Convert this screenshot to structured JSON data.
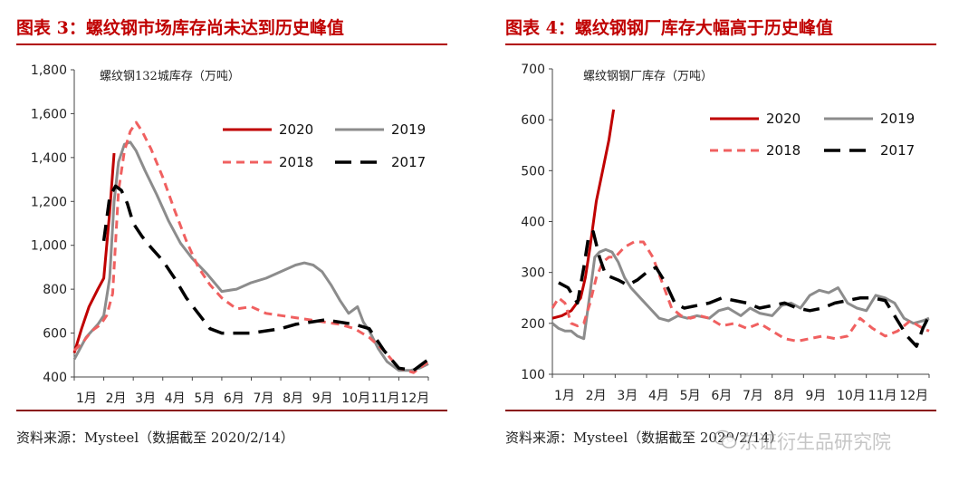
{
  "figures": [
    {
      "title": "图表 3：螺纹钢市场库存尚未达到历史峰值",
      "source": "资料来源：Mysteel（数据截至 2020/2/14）",
      "unit_label": "螺纹钢132城库存（万吨）"
    },
    {
      "title": "图表 4：螺纹钢钢厂库存大幅高于历史峰值",
      "source": "资料来源：Mysteel（数据截至 2020/2/14）",
      "unit_label": "螺纹钢钢厂库存（万吨）"
    }
  ],
  "watermark": "东证衍生品研究院",
  "chart_data": [
    {
      "type": "line",
      "title": "",
      "ylabel": "螺纹钢132城库存（万吨）",
      "ylim": [
        400,
        1800
      ],
      "yticks": [
        400,
        600,
        800,
        1000,
        1200,
        1400,
        1600,
        1800
      ],
      "ytick_labels": [
        "400",
        "600",
        "800",
        "1,000",
        "1,200",
        "1,400",
        "1,600",
        "1,800"
      ],
      "xlim": [
        0,
        12
      ],
      "x_categories": [
        "1月",
        "2月",
        "3月",
        "4月",
        "5月",
        "6月",
        "7月",
        "8月",
        "9月",
        "10月",
        "11月",
        "12月"
      ],
      "grid": false,
      "legend_position": "top-right",
      "series": [
        {
          "name": "2020",
          "color": "#c00000",
          "dash": "solid",
          "width": 3,
          "x": [
            0,
            0.25,
            0.5,
            0.8,
            1.0,
            1.2,
            1.35
          ],
          "y": [
            510,
            620,
            720,
            800,
            850,
            1150,
            1420
          ]
        },
        {
          "name": "2019",
          "color": "#8c8c8c",
          "dash": "solid",
          "width": 3,
          "x": [
            0,
            0.2,
            0.4,
            0.6,
            0.8,
            1.0,
            1.2,
            1.35,
            1.5,
            1.7,
            1.9,
            2.1,
            2.4,
            2.8,
            3.2,
            3.6,
            4.0,
            4.5,
            5.0,
            5.5,
            6.0,
            6.5,
            7.0,
            7.5,
            7.8,
            8.1,
            8.4,
            8.7,
            9.0,
            9.3,
            9.6,
            9.8,
            10.0,
            10.3,
            10.6,
            11.0,
            11.4,
            11.7,
            12.0
          ],
          "y": [
            480,
            530,
            580,
            610,
            640,
            680,
            850,
            1200,
            1380,
            1460,
            1470,
            1430,
            1340,
            1230,
            1110,
            1010,
            940,
            870,
            790,
            800,
            830,
            850,
            880,
            910,
            920,
            910,
            880,
            820,
            750,
            690,
            720,
            650,
            610,
            530,
            470,
            430,
            430,
            440,
            460
          ]
        },
        {
          "name": "2018",
          "color": "#f06060",
          "dash": "dash",
          "width": 3,
          "x": [
            0,
            0.3,
            0.6,
            0.9,
            1.1,
            1.3,
            1.5,
            1.7,
            1.9,
            2.1,
            2.3,
            2.6,
            3.0,
            3.4,
            3.8,
            4.2,
            4.6,
            5.0,
            5.5,
            6.0,
            6.5,
            7.0,
            7.5,
            8.0,
            8.5,
            9.0,
            9.5,
            10.0,
            10.5,
            11.0,
            11.5,
            12.0
          ],
          "y": [
            520,
            560,
            610,
            640,
            680,
            780,
            1250,
            1430,
            1520,
            1560,
            1520,
            1440,
            1310,
            1160,
            1020,
            900,
            820,
            760,
            710,
            720,
            690,
            680,
            670,
            660,
            650,
            640,
            620,
            580,
            520,
            440,
            420,
            470
          ]
        },
        {
          "name": "2017",
          "color": "#000000",
          "dash": "longdash",
          "width": 3.5,
          "x": [
            1.0,
            1.2,
            1.4,
            1.6,
            1.8,
            2.0,
            2.3,
            2.6,
            3.0,
            3.4,
            3.8,
            4.2,
            4.6,
            5.0,
            5.5,
            6.0,
            6.5,
            7.0,
            7.5,
            8.0,
            8.5,
            9.0,
            9.5,
            10.0,
            10.5,
            11.0,
            11.5,
            12.0
          ],
          "y": [
            1020,
            1220,
            1270,
            1250,
            1190,
            1100,
            1040,
            990,
            930,
            850,
            760,
            690,
            620,
            600,
            600,
            600,
            610,
            620,
            640,
            650,
            660,
            650,
            640,
            620,
            520,
            440,
            430,
            480
          ]
        }
      ]
    },
    {
      "type": "line",
      "title": "",
      "ylabel": "螺纹钢钢厂库存（万吨）",
      "ylim": [
        100,
        700
      ],
      "yticks": [
        100,
        200,
        300,
        400,
        500,
        600,
        700
      ],
      "ytick_labels": [
        "100",
        "200",
        "300",
        "400",
        "500",
        "600",
        "700"
      ],
      "xlim": [
        0,
        12
      ],
      "x_categories": [
        "1月",
        "2月",
        "3月",
        "4月",
        "5月",
        "6月",
        "7月",
        "8月",
        "9月",
        "10月",
        "11月",
        "12月"
      ],
      "grid": false,
      "legend_position": "top-right",
      "series": [
        {
          "name": "2020",
          "color": "#c00000",
          "dash": "solid",
          "width": 3,
          "x": [
            0,
            0.3,
            0.6,
            0.9,
            1.05,
            1.2,
            1.4,
            1.6,
            1.8,
            1.95
          ],
          "y": [
            210,
            215,
            225,
            250,
            290,
            350,
            440,
            500,
            560,
            620
          ]
        },
        {
          "name": "2019",
          "color": "#8c8c8c",
          "dash": "solid",
          "width": 3,
          "x": [
            0,
            0.2,
            0.4,
            0.6,
            0.8,
            1.0,
            1.2,
            1.35,
            1.5,
            1.7,
            1.9,
            2.1,
            2.3,
            2.5,
            2.8,
            3.1,
            3.4,
            3.7,
            4.0,
            4.3,
            4.6,
            5.0,
            5.3,
            5.6,
            6.0,
            6.3,
            6.6,
            7.0,
            7.3,
            7.6,
            7.9,
            8.2,
            8.5,
            8.8,
            9.1,
            9.4,
            9.7,
            10.0,
            10.3,
            10.6,
            10.9,
            11.2,
            11.5,
            11.8,
            12.0
          ],
          "y": [
            200,
            190,
            185,
            185,
            175,
            170,
            260,
            330,
            340,
            345,
            340,
            320,
            290,
            270,
            250,
            230,
            210,
            205,
            215,
            210,
            215,
            210,
            225,
            230,
            215,
            230,
            220,
            215,
            235,
            240,
            230,
            255,
            265,
            260,
            270,
            240,
            230,
            225,
            255,
            250,
            240,
            210,
            200,
            205,
            210
          ]
        },
        {
          "name": "2018",
          "color": "#f06060",
          "dash": "dash",
          "width": 3,
          "x": [
            0,
            0.2,
            0.4,
            0.6,
            0.8,
            1.0,
            1.2,
            1.4,
            1.6,
            1.8,
            2.0,
            2.3,
            2.6,
            2.9,
            3.2,
            3.5,
            3.8,
            4.1,
            4.4,
            4.7,
            5.0,
            5.4,
            5.8,
            6.2,
            6.6,
            7.0,
            7.4,
            7.8,
            8.2,
            8.6,
            9.0,
            9.4,
            9.8,
            10.2,
            10.6,
            11.0,
            11.4,
            11.8,
            12.0
          ],
          "y": [
            230,
            250,
            240,
            200,
            195,
            200,
            240,
            290,
            320,
            330,
            330,
            350,
            360,
            360,
            330,
            280,
            230,
            215,
            210,
            215,
            210,
            195,
            200,
            190,
            200,
            185,
            170,
            165,
            170,
            175,
            170,
            175,
            210,
            190,
            175,
            185,
            205,
            190,
            185
          ]
        },
        {
          "name": "2017",
          "color": "#000000",
          "dash": "longdash",
          "width": 3.5,
          "x": [
            0.2,
            0.5,
            0.8,
            1.0,
            1.15,
            1.3,
            1.5,
            1.7,
            1.9,
            2.1,
            2.4,
            2.7,
            3.0,
            3.3,
            3.6,
            3.9,
            4.2,
            4.6,
            5.0,
            5.4,
            5.8,
            6.2,
            6.6,
            7.0,
            7.4,
            7.8,
            8.2,
            8.6,
            9.0,
            9.4,
            9.8,
            10.2,
            10.6,
            11.0,
            11.3,
            11.6,
            11.8,
            12.0
          ],
          "y": [
            280,
            270,
            240,
            310,
            370,
            380,
            330,
            295,
            290,
            285,
            275,
            285,
            300,
            310,
            280,
            240,
            230,
            235,
            240,
            250,
            245,
            240,
            230,
            235,
            240,
            230,
            225,
            230,
            240,
            245,
            250,
            250,
            245,
            205,
            175,
            155,
            190,
            215
          ]
        }
      ]
    }
  ]
}
